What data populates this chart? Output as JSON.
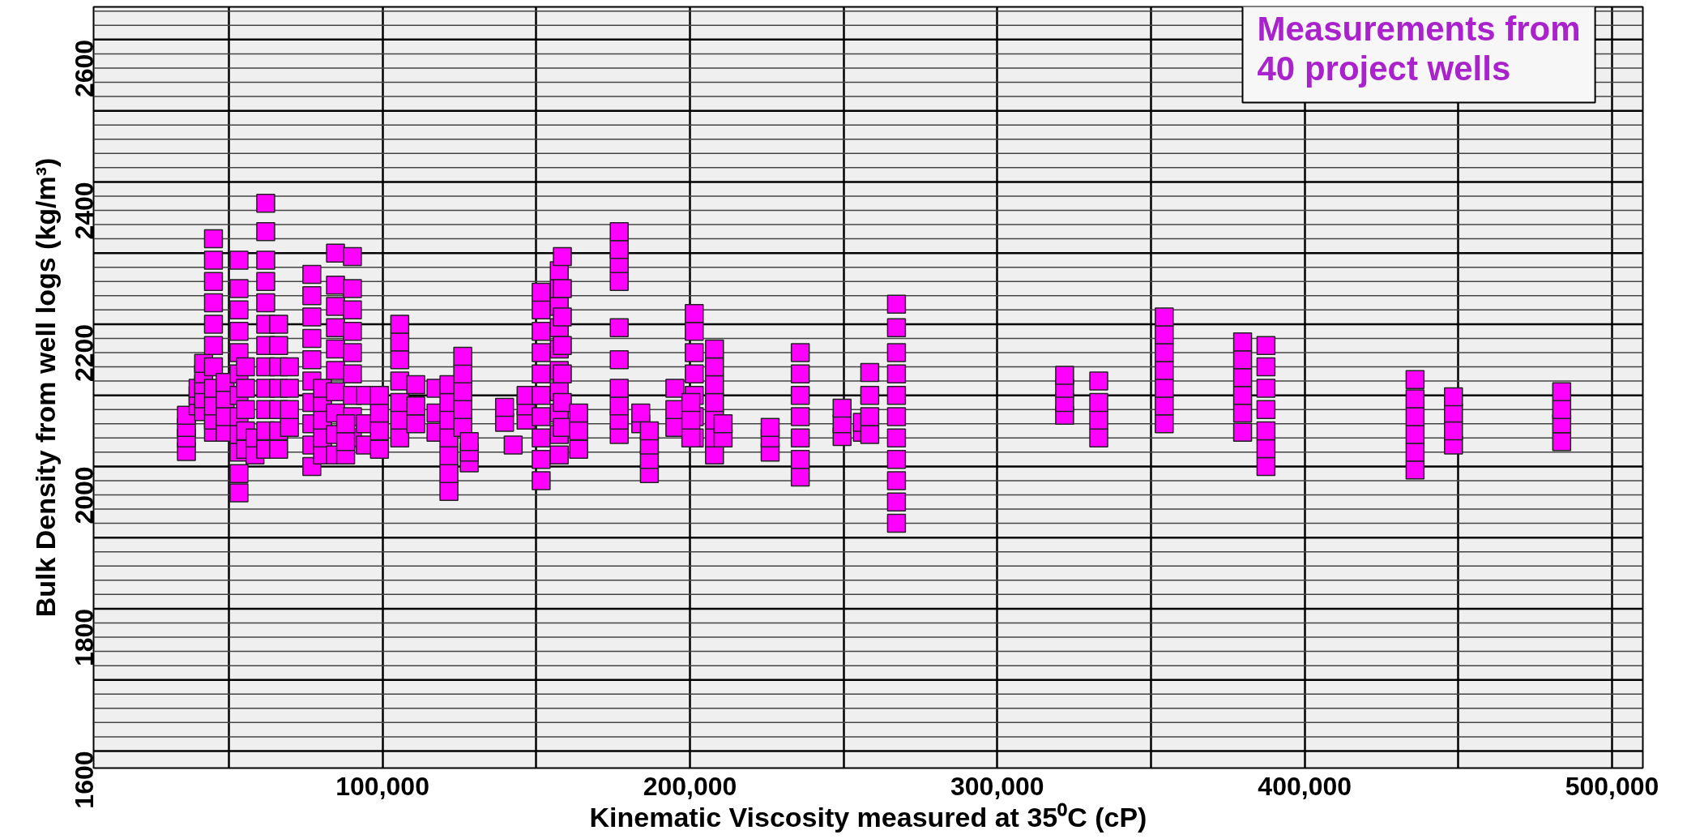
{
  "chart_data": {
    "type": "scatter",
    "xlabel": "Kinematic Viscosity measured at 35⁰C (cP)",
    "ylabel": "Bulk Density from well logs (kg/m³)",
    "annotations": [
      "Measurements from\n40 project wells"
    ],
    "xlim": [
      6000,
      510000
    ],
    "ylim": [
      1576,
      2646
    ],
    "xticks": [
      {
        "value": 50000,
        "label": null
      },
      {
        "value": 100000,
        "label": "100,000"
      },
      {
        "value": 150000,
        "label": null
      },
      {
        "value": 200000,
        "label": "200,000"
      },
      {
        "value": 250000,
        "label": null
      },
      {
        "value": 300000,
        "label": "300,000"
      },
      {
        "value": 350000,
        "label": null
      },
      {
        "value": 400000,
        "label": "400,000"
      },
      {
        "value": 450000,
        "label": null
      },
      {
        "value": 500000,
        "label": "500,000"
      }
    ],
    "yticks": [
      1600,
      {
        "value": 1620,
        "label": null
      },
      {
        "value": 1640,
        "label": null
      },
      {
        "value": 1660,
        "label": null
      },
      {
        "value": 1680,
        "label": null
      },
      {
        "value": 1700,
        "label": null
      },
      {
        "value": 1720,
        "label": null
      },
      {
        "value": 1740,
        "label": null
      },
      {
        "value": 1760,
        "label": null
      },
      {
        "value": 1780,
        "label": null
      },
      1800,
      {
        "value": 1820,
        "label": null
      },
      {
        "value": 1840,
        "label": null
      },
      {
        "value": 1860,
        "label": null
      },
      {
        "value": 1880,
        "label": null
      },
      {
        "value": 1900,
        "label": null
      },
      {
        "value": 1920,
        "label": null
      },
      {
        "value": 1940,
        "label": null
      },
      {
        "value": 1960,
        "label": null
      },
      {
        "value": 1980,
        "label": null
      },
      2000,
      {
        "value": 2020,
        "label": null
      },
      {
        "value": 2040,
        "label": null
      },
      {
        "value": 2060,
        "label": null
      },
      {
        "value": 2080,
        "label": null
      },
      {
        "value": 2100,
        "label": null
      },
      {
        "value": 2120,
        "label": null
      },
      {
        "value": 2140,
        "label": null
      },
      {
        "value": 2160,
        "label": null
      },
      {
        "value": 2180,
        "label": null
      },
      2200,
      {
        "value": 2220,
        "label": null
      },
      {
        "value": 2240,
        "label": null
      },
      {
        "value": 2260,
        "label": null
      },
      {
        "value": 2280,
        "label": null
      },
      {
        "value": 2300,
        "label": null
      },
      {
        "value": 2320,
        "label": null
      },
      {
        "value": 2340,
        "label": null
      },
      {
        "value": 2360,
        "label": null
      },
      {
        "value": 2380,
        "label": null
      },
      2400,
      {
        "value": 2420,
        "label": null
      },
      {
        "value": 2440,
        "label": null
      },
      {
        "value": 2460,
        "label": null
      },
      {
        "value": 2480,
        "label": null
      },
      {
        "value": 2500,
        "label": null
      },
      {
        "value": 2520,
        "label": null
      },
      {
        "value": 2540,
        "label": null
      },
      {
        "value": 2560,
        "label": null
      },
      {
        "value": 2580,
        "label": null
      },
      2600,
      {
        "value": 2620,
        "label": null
      },
      {
        "value": 2640,
        "label": null
      }
    ],
    "grid": true,
    "marker": "square",
    "series": [
      {
        "color": "#ff00ff",
        "x": [
          36200,
          36200,
          36200,
          36200,
          40000,
          40000,
          40000,
          41800,
          41800,
          41800,
          41800,
          41800,
          45000,
          45000,
          45000,
          45000,
          45000,
          45000,
          45000,
          45000,
          45000,
          45000,
          45000,
          48800,
          48800,
          48800,
          48800,
          53300,
          53300,
          53300,
          53300,
          53300,
          53300,
          53300,
          53300,
          53300,
          53300,
          53300,
          53300,
          55400,
          55400,
          55400,
          55400,
          55400,
          58500,
          58500,
          62000,
          62000,
          62000,
          62000,
          62000,
          62000,
          62000,
          62000,
          62000,
          62000,
          62000,
          62000,
          66200,
          66200,
          66200,
          66200,
          66200,
          66200,
          66200,
          69700,
          69700,
          69700,
          69700,
          77000,
          77000,
          77000,
          77000,
          77000,
          77000,
          77000,
          77000,
          77000,
          77000,
          80500,
          80500,
          80500,
          80500,
          80500,
          84700,
          84700,
          84700,
          84700,
          84700,
          84700,
          84700,
          84700,
          84700,
          84700,
          90200,
          90200,
          90200,
          90200,
          90200,
          90200,
          90200,
          90200,
          90200,
          88000,
          88000,
          88000,
          94400,
          94400,
          94400,
          99000,
          99000,
          99000,
          99000,
          105600,
          105600,
          105600,
          105600,
          105600,
          105600,
          105600,
          110800,
          110800,
          110800,
          117400,
          117400,
          117400,
          121600,
          121600,
          121600,
          121600,
          121600,
          121600,
          121600,
          126100,
          126100,
          126100,
          126100,
          126100,
          128200,
          128200,
          128200,
          139700,
          139700,
          142500,
          146700,
          146700,
          146700,
          151600,
          151600,
          151600,
          151600,
          151600,
          151600,
          151600,
          151600,
          151600,
          151600,
          157500,
          157500,
          157500,
          157500,
          157500,
          157500,
          157500,
          157500,
          157500,
          157500,
          158500,
          158500,
          158500,
          158500,
          158500,
          158500,
          158500,
          163800,
          163800,
          163800,
          177000,
          177000,
          177000,
          177000,
          177000,
          177000,
          177000,
          177000,
          177000,
          177000,
          184000,
          184000,
          186800,
          186800,
          186800,
          186800,
          195100,
          195100,
          195100,
          201400,
          201400,
          201400,
          201400,
          201400,
          201400,
          201400,
          200300,
          200300,
          200300,
          208000,
          208000,
          208000,
          208000,
          208000,
          208000,
          208000,
          210800,
          210800,
          226100,
          226100,
          226100,
          235900,
          235900,
          235900,
          235900,
          235900,
          235900,
          235900,
          249500,
          249500,
          249500,
          256100,
          256100,
          258500,
          258500,
          258500,
          258500,
          267200,
          267200,
          267200,
          267200,
          267200,
          267200,
          267200,
          267200,
          267200,
          267200,
          267200,
          321900,
          321900,
          321900,
          321900,
          333000,
          333000,
          333000,
          333000,
          354300,
          354300,
          354300,
          354300,
          354300,
          354300,
          354300,
          379800,
          379800,
          379800,
          379800,
          379800,
          379800,
          387400,
          387400,
          387400,
          387400,
          387400,
          387400,
          387400,
          435900,
          435900,
          435900,
          435900,
          435900,
          435900,
          448400,
          448400,
          448400,
          448400,
          483600,
          483600,
          483600,
          483600
        ],
        "values": [
          2021,
          2040,
          2055,
          2072,
          2085,
          2100,
          2110,
          2077,
          2095,
          2115,
          2130,
          2145,
          2048,
          2065,
          2085,
          2110,
          2140,
          2170,
          2200,
          2230,
          2260,
          2290,
          2320,
          2048,
          2070,
          2095,
          2118,
          1963,
          1990,
          2020,
          2045,
          2070,
          2100,
          2130,
          2160,
          2190,
          2220,
          2250,
          2290,
          2024,
          2050,
          2080,
          2110,
          2140,
          2016,
          2040,
          2024,
          2050,
          2080,
          2110,
          2140,
          2170,
          2200,
          2230,
          2260,
          2290,
          2330,
          2370,
          2024,
          2050,
          2080,
          2110,
          2140,
          2170,
          2200,
          2055,
          2080,
          2110,
          2140,
          2000,
          2030,
          2060,
          2090,
          2120,
          2150,
          2180,
          2210,
          2240,
          2270,
          2016,
          2040,
          2065,
          2090,
          2110,
          2016,
          2045,
          2075,
          2105,
          2135,
          2165,
          2195,
          2225,
          2255,
          2300,
          2040,
          2070,
          2100,
          2130,
          2160,
          2190,
          2220,
          2250,
          2295,
          2016,
          2035,
          2060,
          2030,
          2060,
          2100,
          2024,
          2050,
          2075,
          2100,
          2040,
          2065,
          2090,
          2120,
          2150,
          2175,
          2200,
          2060,
          2085,
          2115,
          2048,
          2075,
          2110,
          1965,
          1990,
          2015,
          2040,
          2065,
          2090,
          2115,
          2055,
          2080,
          2105,
          2130,
          2155,
          2005,
          2020,
          2035,
          2062,
          2083,
          2030,
          2065,
          2085,
          2100,
          1980,
          2010,
          2040,
          2070,
          2100,
          2130,
          2160,
          2190,
          2220,
          2245,
          2016,
          2045,
          2075,
          2105,
          2135,
          2165,
          2195,
          2225,
          2250,
          2275,
          2055,
          2090,
          2130,
          2170,
          2210,
          2250,
          2295,
          2024,
          2050,
          2075,
          2045,
          2065,
          2085,
          2110,
          2150,
          2195,
          2260,
          2285,
          2305,
          2330,
          2060,
          2075,
          1990,
          2010,
          2030,
          2050,
          2055,
          2080,
          2110,
          2040,
          2070,
          2100,
          2130,
          2160,
          2190,
          2215,
          2040,
          2065,
          2090,
          2016,
          2040,
          2065,
          2090,
          2115,
          2140,
          2165,
          2040,
          2060,
          2020,
          2040,
          2055,
          1985,
          2010,
          2040,
          2070,
          2100,
          2130,
          2160,
          2042,
          2060,
          2082,
          2048,
          2062,
          2045,
          2070,
          2100,
          2132,
          1920,
          1950,
          1980,
          2010,
          2040,
          2070,
          2100,
          2130,
          2160,
          2195,
          2228,
          2072,
          2090,
          2110,
          2128,
          2040,
          2065,
          2090,
          2120,
          2060,
          2085,
          2110,
          2135,
          2160,
          2185,
          2210,
          2048,
          2075,
          2100,
          2125,
          2150,
          2175,
          2000,
          2025,
          2050,
          2080,
          2110,
          2140,
          2170,
          1995,
          2020,
          2045,
          2070,
          2095,
          2122,
          2030,
          2050,
          2075,
          2098,
          2035,
          2060,
          2080,
          2105
        ]
      }
    ]
  }
}
